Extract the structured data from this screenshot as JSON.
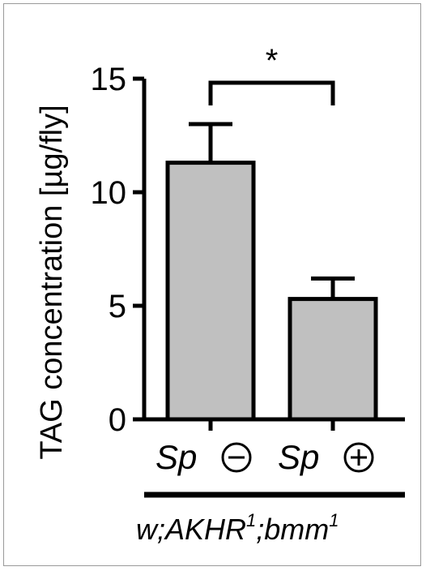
{
  "chart_data": {
    "type": "bar",
    "title": "",
    "xlabel": "",
    "ylabel": "TAG concentration [µg/fly]",
    "ylim": [
      0,
      15
    ],
    "yticks": [
      "0",
      "5",
      "10",
      "15"
    ],
    "categories": [
      "Sp",
      "Sp"
    ],
    "category_symbols": [
      "minus-circle",
      "plus-circle"
    ],
    "values": [
      11.3,
      5.3
    ],
    "errors": [
      1.7,
      0.9
    ],
    "bar_color": "#c0c0c0",
    "edge_color": "#000000",
    "significance": {
      "between": [
        0,
        1
      ],
      "label": "*"
    },
    "genotype": {
      "base": "w;AKHR",
      "sup1": "1",
      "mid": ";bmm",
      "sup2": "1"
    }
  }
}
